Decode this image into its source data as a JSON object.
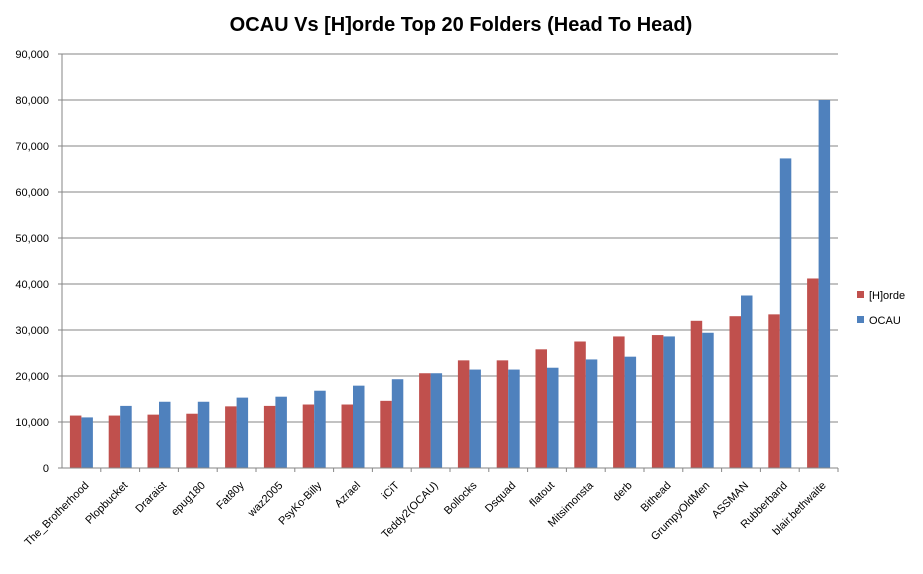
{
  "chart_data": {
    "type": "bar",
    "title": "OCAU Vs [H]orde Top 20 Folders (Head To Head)",
    "xlabel": "",
    "ylabel": "",
    "ylim": [
      0,
      90000
    ],
    "yticks": [
      "0",
      "10,000",
      "20,000",
      "30,000",
      "40,000",
      "50,000",
      "60,000",
      "70,000",
      "80,000",
      "90,000"
    ],
    "grid": true,
    "legend_position": "right",
    "categories": [
      "The_Brotherhood",
      "Plopbucket",
      "Draraist",
      "epug180",
      "Fat80y",
      "waz2005",
      "PsyKo-Billy",
      "Azrael",
      "iCiT",
      "Teddy2(OCAU)",
      "Bollocks",
      "Dsquad",
      "flatout",
      "Mitsimonsta",
      "derb",
      "Bithead",
      "GrumpyOldMen",
      "ASSMAN",
      "Rubberband",
      "blair.bethwaite"
    ],
    "series": [
      {
        "name": "[H]orde",
        "color": "#C0504D",
        "values": [
          11400,
          11400,
          11600,
          11800,
          13400,
          13500,
          13800,
          13800,
          14600,
          20600,
          23400,
          23400,
          25800,
          27500,
          28600,
          28900,
          32000,
          33000,
          33400,
          41200
        ]
      },
      {
        "name": "OCAU",
        "color": "#4F81BD",
        "values": [
          11000,
          13500,
          14400,
          14400,
          15300,
          15500,
          16800,
          17900,
          19300,
          20600,
          21400,
          21400,
          21800,
          23600,
          24200,
          28600,
          29400,
          37500,
          67300,
          80000
        ]
      }
    ]
  }
}
